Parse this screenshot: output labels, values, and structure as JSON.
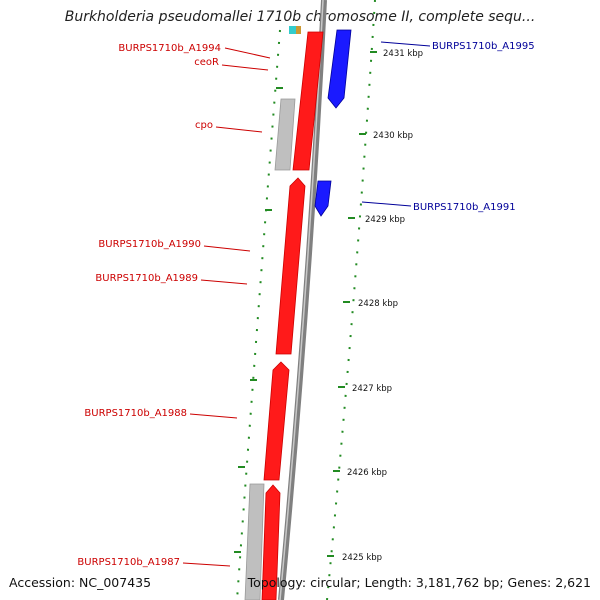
{
  "header": {
    "title": "Burkholderia pseudomallei 1710b chromosome II, complete sequ..."
  },
  "footer": {
    "accession": "Accession: NC_007435",
    "topology": "Topology: circular; Length: 3,181,762 bp; Genes: 2,621"
  },
  "colors": {
    "forward_gene": "#ff0000",
    "reverse_gene": "#0000ff",
    "other_feature": "#c0c0c0",
    "backbone": "#808080",
    "ruler": "#228b22",
    "label_forward": "#cc0000",
    "label_reverse": "#000099"
  },
  "ruler": {
    "ticks": [
      "2431 kbp",
      "2430 kbp",
      "2429 kbp",
      "2428 kbp",
      "2427 kbp",
      "2426 kbp",
      "2425 kbp"
    ]
  },
  "labels": {
    "left": [
      "BURPS1710b_A1994",
      "ceoR",
      "cpo",
      "BURPS1710b_A1990",
      "BURPS1710b_A1989",
      "BURPS1710b_A1988",
      "BURPS1710b_A1987"
    ],
    "right": [
      "BURPS1710b_A1995",
      "BURPS1710b_A1991"
    ]
  }
}
